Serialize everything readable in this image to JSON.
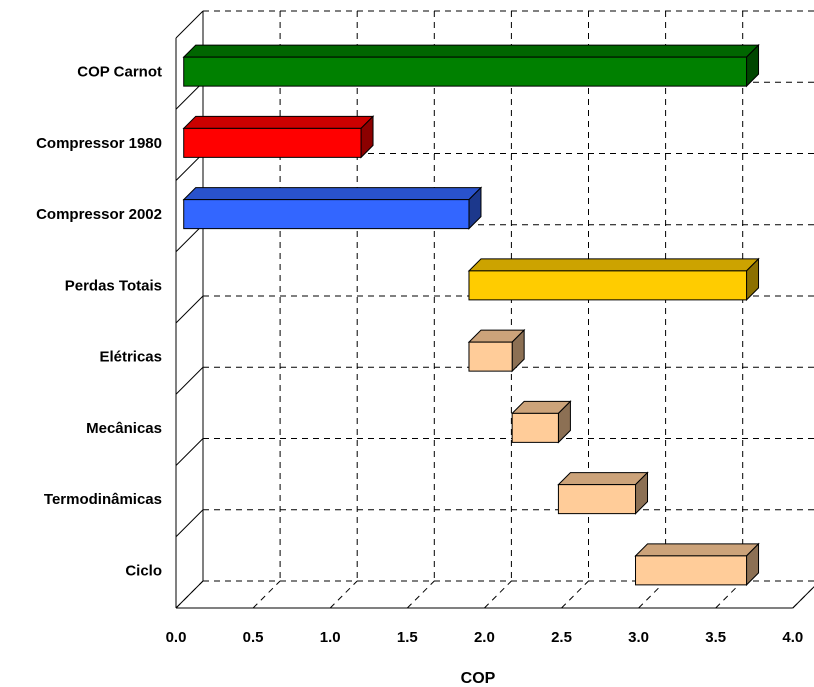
{
  "chart_data": {
    "type": "bar",
    "orientation": "horizontal-floating-3d",
    "title": "",
    "xlabel": "COP",
    "ylabel": "",
    "xlim": [
      0,
      4
    ],
    "xticks": [
      "0.0",
      "0.5",
      "1.0",
      "1.5",
      "2.0",
      "2.5",
      "3.0",
      "3.5",
      "4.0"
    ],
    "grid": true,
    "legend": "none",
    "categories": [
      "COP Carnot",
      "Compressor 1980",
      "Compressor 2002",
      "Perdas Totais",
      "Elétricas",
      "Mecânicas",
      "Termodinâmicas",
      "Ciclo"
    ],
    "bars": [
      {
        "category": "COP Carnot",
        "start": 0.05,
        "end": 3.7,
        "color": "#008000"
      },
      {
        "category": "Compressor 1980",
        "start": 0.05,
        "end": 1.2,
        "color": "#ff0000"
      },
      {
        "category": "Compressor 2002",
        "start": 0.05,
        "end": 1.9,
        "color": "#3366ff"
      },
      {
        "category": "Perdas Totais",
        "start": 1.9,
        "end": 3.7,
        "color": "#ffcc00"
      },
      {
        "category": "Elétricas",
        "start": 1.9,
        "end": 2.18,
        "color": "#ffcc99"
      },
      {
        "category": "Mecânicas",
        "start": 2.18,
        "end": 2.48,
        "color": "#ffcc99"
      },
      {
        "category": "Termodinâmicas",
        "start": 2.48,
        "end": 2.98,
        "color": "#ffcc99"
      },
      {
        "category": "Ciclo",
        "start": 2.98,
        "end": 3.7,
        "color": "#ffcc99"
      }
    ]
  }
}
